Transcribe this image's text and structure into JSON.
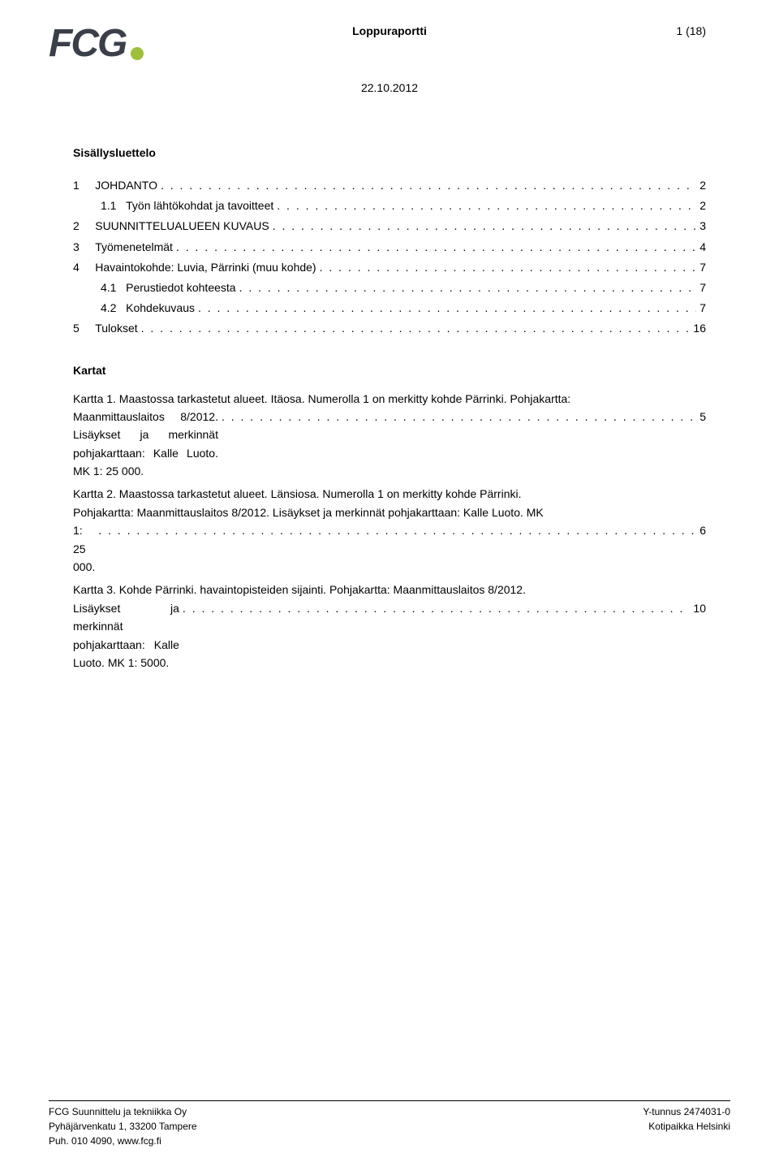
{
  "header": {
    "logo_text": "FCG",
    "doc_title": "Loppuraportti",
    "page_label": "1 (18)",
    "date": "22.10.2012"
  },
  "toc": {
    "heading": "Sisällysluettelo",
    "entries": [
      {
        "num": "1",
        "label": "JOHDANTO",
        "page": "2",
        "indent": 0
      },
      {
        "num": "1.1",
        "label": "Työn lähtökohdat ja tavoitteet",
        "page": "2",
        "indent": 1
      },
      {
        "num": "2",
        "label": "SUUNNITTELUALUEEN KUVAUS",
        "page": "3",
        "indent": 0
      },
      {
        "num": "3",
        "label": "Työmenetelmät",
        "page": "4",
        "indent": 0
      },
      {
        "num": "4",
        "label": "Havaintokohde: Luvia, Pärrinki (muu kohde)",
        "page": "7",
        "indent": 0
      },
      {
        "num": "4.1",
        "label": "Perustiedot kohteesta",
        "page": "7",
        "indent": 1
      },
      {
        "num": "4.2",
        "label": "Kohdekuvaus",
        "page": "7",
        "indent": 1
      },
      {
        "num": "5",
        "label": "Tulokset",
        "page": "16",
        "indent": 0
      }
    ]
  },
  "kartat": {
    "heading": "Kartat",
    "entries": [
      {
        "lines": [
          "Kartta 1. Maastossa tarkastetut alueet. Itäosa. Numerolla 1 on merkitty kohde Pärrinki. Pohjakartta:"
        ],
        "last_prefix": "Maanmittauslaitos 8/2012. Lisäykset ja merkinnät pohjakarttaan: Kalle Luoto. MK 1: 25 000.",
        "page": "5"
      },
      {
        "lines": [
          "Kartta 2. Maastossa tarkastetut alueet. Länsiosa. Numerolla 1 on merkitty kohde Pärrinki.",
          "Pohjakartta: Maanmittauslaitos 8/2012. Lisäykset ja merkinnät pohjakarttaan: Kalle Luoto. MK"
        ],
        "last_prefix": "1: 25 000.",
        "page": "6"
      },
      {
        "lines": [
          "Kartta 3. Kohde Pärrinki. havaintopisteiden sijainti. Pohjakartta: Maanmittauslaitos 8/2012."
        ],
        "last_prefix": "Lisäykset ja merkinnät pohjakarttaan: Kalle Luoto. MK 1: 5000.",
        "page": "10"
      }
    ]
  },
  "footer": {
    "company": "FCG Suunnittelu ja tekniikka Oy",
    "address": "Pyhäjärvenkatu 1, 33200 Tampere",
    "phone": "Puh. 010 4090, www.fcg.fi",
    "ytunnus": "Y-tunnus 2474031-0",
    "domicile": "Kotipaikka Helsinki"
  }
}
